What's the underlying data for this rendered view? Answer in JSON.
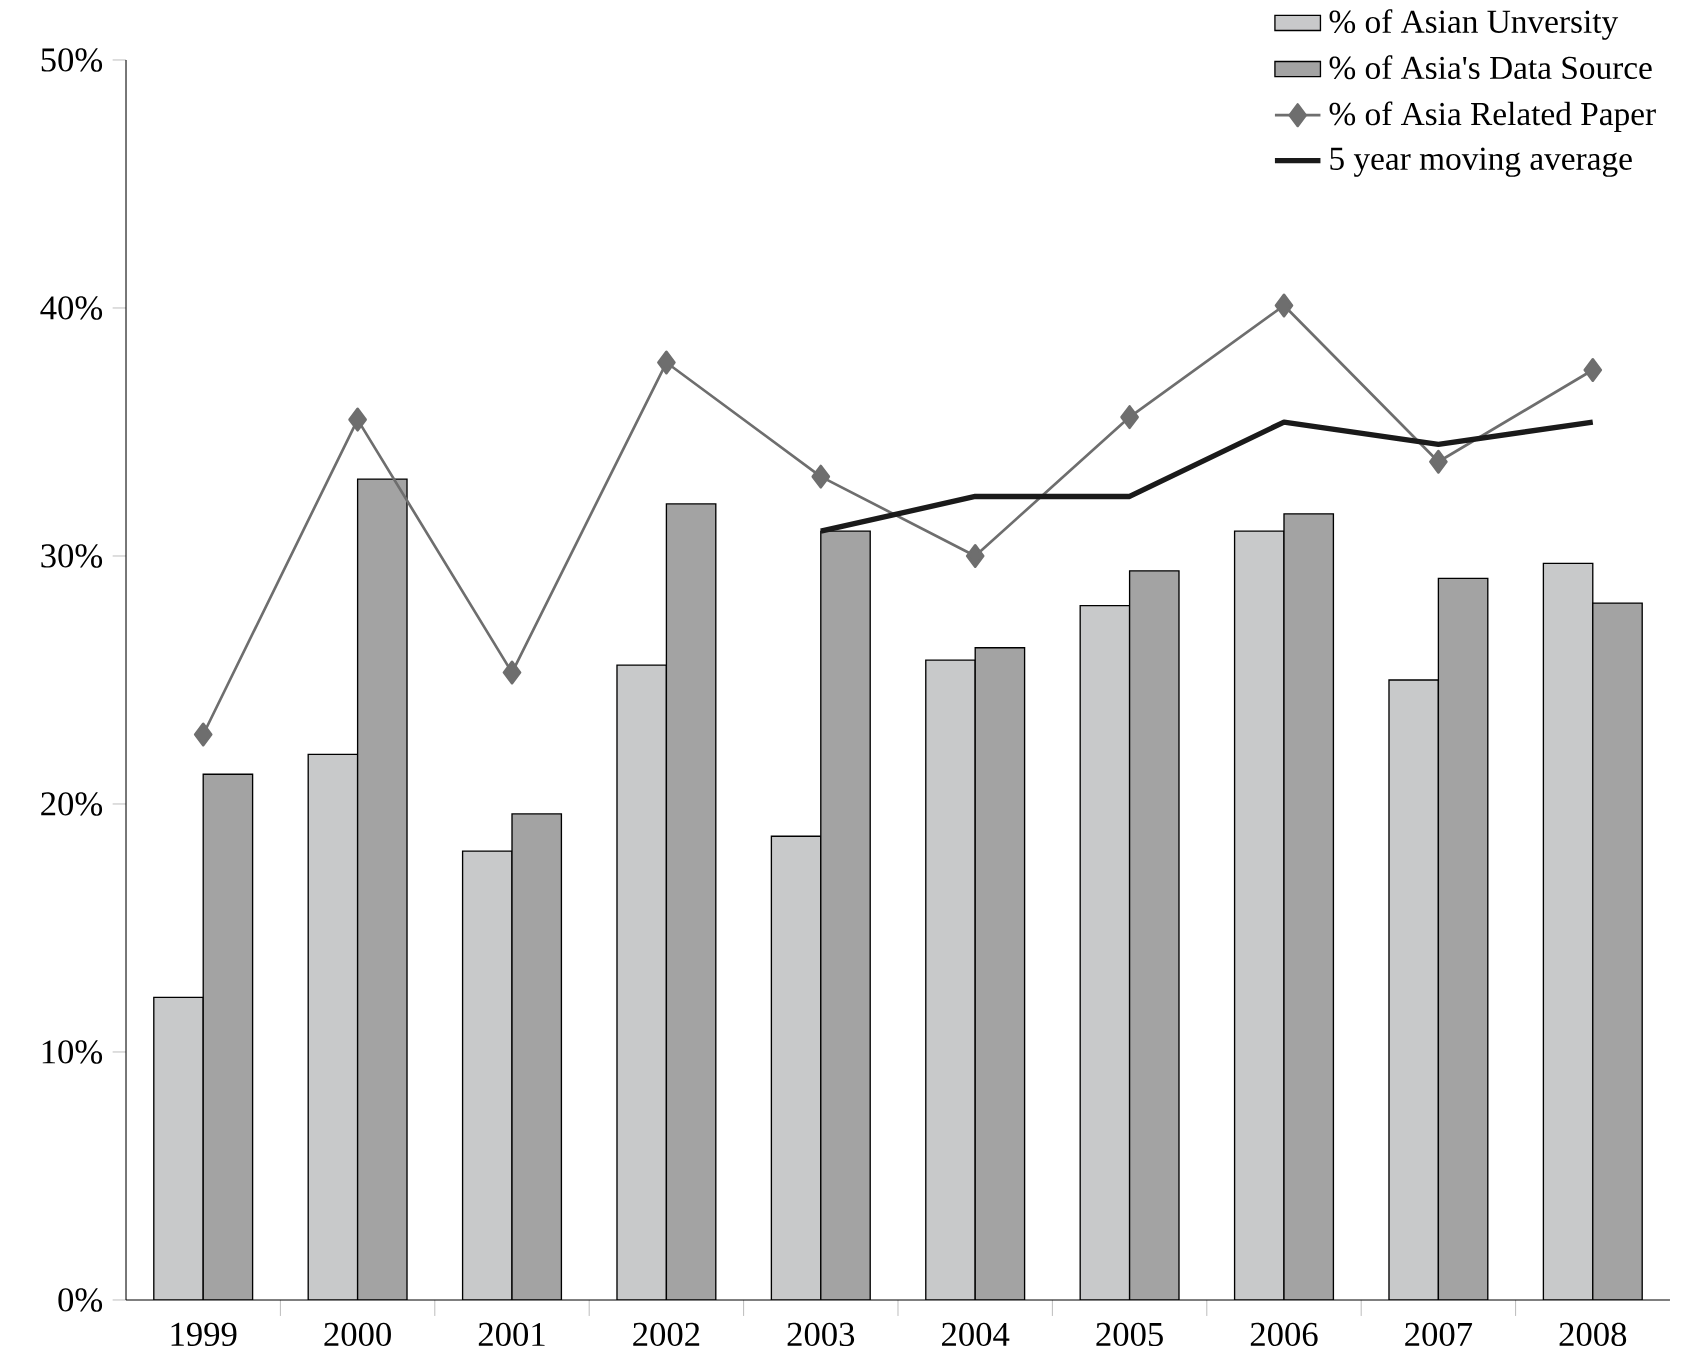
{
  "chart_data": {
    "type": "bar",
    "categories": [
      "1999",
      "2000",
      "2001",
      "2002",
      "2003",
      "2004",
      "2005",
      "2006",
      "2007",
      "2008"
    ],
    "series": [
      {
        "name": "% of Asian Unversity",
        "color": "#c8c9ca",
        "values": [
          12.2,
          22.0,
          18.1,
          25.6,
          18.7,
          25.8,
          28.0,
          31.0,
          25.0,
          29.7
        ]
      },
      {
        "name": "% of Asia's Data Source",
        "color": "#a3a3a3",
        "values": [
          21.2,
          33.1,
          19.6,
          32.1,
          31.0,
          26.3,
          29.4,
          31.7,
          29.1,
          28.1
        ]
      },
      {
        "name": "% of Asia Related Paper",
        "type": "line",
        "marker": "diamond",
        "color": "#6e6e6e",
        "values": [
          22.8,
          35.5,
          25.3,
          37.8,
          33.2,
          30.0,
          35.6,
          40.1,
          33.8,
          37.5
        ]
      },
      {
        "name": "5 year moving average",
        "type": "line",
        "marker": "none",
        "color": "#1a1a1a",
        "values": [
          null,
          null,
          null,
          null,
          31.0,
          32.4,
          32.4,
          35.4,
          34.5,
          35.4
        ]
      }
    ],
    "ylim": [
      0,
      50
    ],
    "yticks": [
      {
        "value": 0,
        "label": "0%"
      },
      {
        "value": 10,
        "label": "10%"
      },
      {
        "value": 20,
        "label": "20%"
      },
      {
        "value": 30,
        "label": "30%"
      },
      {
        "value": 40,
        "label": "40%"
      },
      {
        "value": 50,
        "label": "50%"
      }
    ],
    "legend": "top right"
  }
}
